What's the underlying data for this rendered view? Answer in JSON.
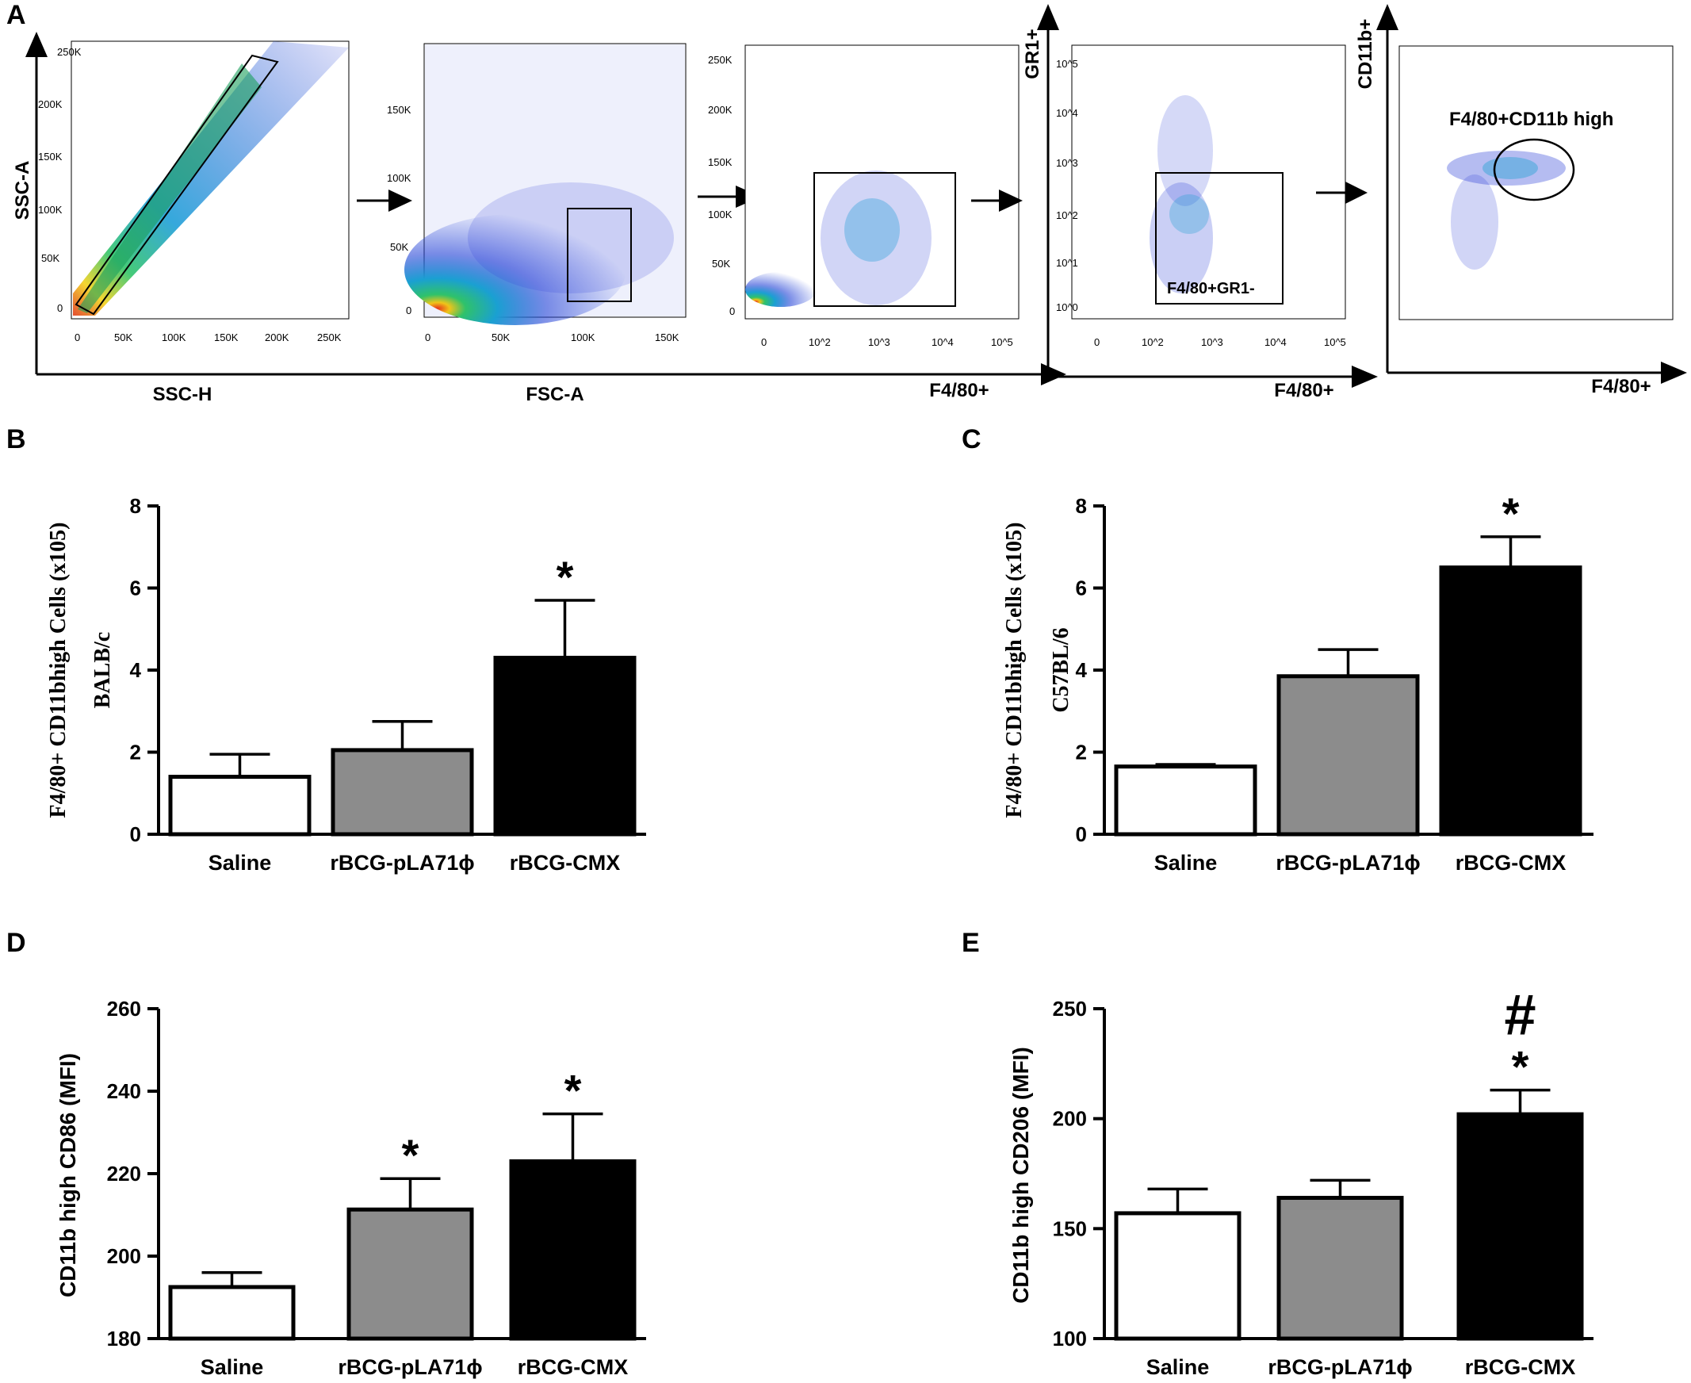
{
  "figure": {
    "panel_letters": [
      "A",
      "B",
      "C",
      "D",
      "E"
    ]
  },
  "flow": {
    "axis_labels": {
      "ssc_a": "SSC-A",
      "ssc_h": "SSC-H",
      "fsc_a": "FSC-A",
      "f480_1": "F4/80+",
      "gr1": "GR1+",
      "f480_2": "F4/80+",
      "cd11b": "CD11b+",
      "f480_3": "F4/80+"
    },
    "gate_labels": {
      "f480_gr1": "F4/80+GR1-",
      "f480_cd11b_high": "F4/80+CD11b high"
    },
    "ticks": {
      "p1_y": [
        "0",
        "50K",
        "100K",
        "150K",
        "200K",
        "250K"
      ],
      "p1_x": [
        "0",
        "50K",
        "100K",
        "150K",
        "200K",
        "250K"
      ],
      "p2_y": [
        "0",
        "50K",
        "100K",
        "150K"
      ],
      "p2_x": [
        "0",
        "50K",
        "100K",
        "150K"
      ],
      "p3_y": [
        "0",
        "50K",
        "100K",
        "150K",
        "200K",
        "250K"
      ],
      "p3_x": [
        "0",
        "10^2",
        "10^3",
        "10^4",
        "10^5"
      ],
      "p4_y": [
        "10^0",
        "10^1",
        "10^2",
        "10^3",
        "10^4",
        "10^5"
      ],
      "p4_x": [
        "0",
        "10^2",
        "10^3",
        "10^4",
        "10^5"
      ]
    }
  },
  "chart_data": [
    {
      "id": "B",
      "type": "bar",
      "categories": [
        "Saline",
        "rBCG-pLA71ϕ",
        "rBCG-CMX"
      ],
      "values": [
        1.4,
        2.05,
        4.3
      ],
      "errors": [
        0.55,
        0.7,
        1.4
      ],
      "colors": [
        "#ffffff",
        "#8c8c8c",
        "#000000"
      ],
      "annotations": [
        "",
        "",
        "*"
      ],
      "ylim": [
        0,
        8
      ],
      "yticks": [
        0,
        2,
        4,
        6,
        8
      ],
      "ylabel_line1": "F4/80+ CD11bhigh Cells (x105)",
      "ylabel_line2": "BALB/c",
      "title": ""
    },
    {
      "id": "C",
      "type": "bar",
      "categories": [
        "Saline",
        "rBCG-pLA71ϕ",
        "rBCG-CMX"
      ],
      "values": [
        1.65,
        3.85,
        6.5
      ],
      "errors": [
        0.05,
        0.65,
        0.75
      ],
      "colors": [
        "#ffffff",
        "#8c8c8c",
        "#000000"
      ],
      "annotations": [
        "",
        "",
        "*"
      ],
      "ylim": [
        0,
        8
      ],
      "yticks": [
        0,
        2,
        4,
        6,
        8
      ],
      "ylabel_line1": "F4/80+ CD11bhigh Cells (x105)",
      "ylabel_line2": "C57BL/6",
      "title": ""
    },
    {
      "id": "D",
      "type": "bar",
      "categories": [
        "Saline",
        "rBCG-pLA71ϕ",
        "rBCG-CMX"
      ],
      "values": [
        192.5,
        211.3,
        223
      ],
      "errors": [
        3.5,
        7.5,
        11.5
      ],
      "colors": [
        "#ffffff",
        "#8c8c8c",
        "#000000"
      ],
      "annotations": [
        "",
        "*",
        "*"
      ],
      "ylim": [
        180,
        260
      ],
      "yticks": [
        180,
        200,
        220,
        240,
        260
      ],
      "ylabel": "CD11b high CD86 (MFI)",
      "title": ""
    },
    {
      "id": "E",
      "type": "bar",
      "categories": [
        "Saline",
        "rBCG-pLA71ϕ",
        "rBCG-CMX"
      ],
      "values": [
        157,
        164,
        202
      ],
      "errors": [
        11,
        8,
        11
      ],
      "colors": [
        "#ffffff",
        "#8c8c8c",
        "#000000"
      ],
      "annotations": [
        "",
        "",
        "*"
      ],
      "extra_annotations": [
        "",
        "",
        "#"
      ],
      "ylim": [
        100,
        250
      ],
      "yticks": [
        100,
        150,
        200,
        250
      ],
      "ylabel": "CD11b high CD206 (MFI)",
      "title": ""
    }
  ]
}
